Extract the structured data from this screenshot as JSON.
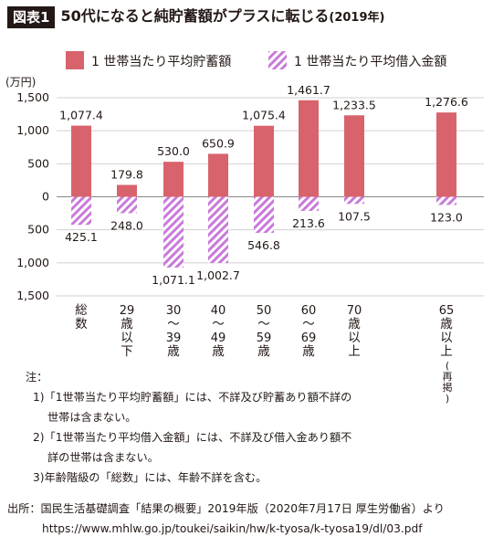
{
  "header": {
    "badge": "図表1",
    "title": "50代になると純貯蓄額がプラスに転じる",
    "year": "(2019年)"
  },
  "legend": {
    "savings": "1 世帯当たり平均貯蓄額",
    "debt": "1 世帯当たり平均借入金額"
  },
  "colors": {
    "savings": "#d8636c",
    "debt": "#c97ad9",
    "text": "#231815"
  },
  "chart_data": {
    "type": "bar",
    "unit": "(万円)",
    "ylim": [
      -1500,
      1500
    ],
    "yticks": [
      "1,500",
      "1,000",
      "500",
      "0",
      "500",
      "1,000",
      "1,500"
    ],
    "categories": [
      "総数",
      "29歳以下",
      "30〜39歳",
      "40〜49歳",
      "50〜59歳",
      "60〜69歳",
      "70歳以上",
      "65歳以上(再掲)"
    ],
    "category_labels": [
      [
        "総",
        "数"
      ],
      [
        "29",
        "歳",
        "以",
        "下"
      ],
      [
        "30",
        "〜",
        "39",
        "歳"
      ],
      [
        "40",
        "〜",
        "49",
        "歳"
      ],
      [
        "50",
        "〜",
        "59",
        "歳"
      ],
      [
        "60",
        "〜",
        "69",
        "歳"
      ],
      [
        "70",
        "歳",
        "以",
        "上"
      ],
      [
        "65",
        "歳",
        "以",
        "上",
        "(再掲)"
      ]
    ],
    "series": [
      {
        "name": "1 世帯当たり平均貯蓄額",
        "values": [
          1077.4,
          179.8,
          530.0,
          650.9,
          1075.4,
          1461.7,
          1233.5,
          1276.6
        ],
        "labels": [
          "1,077.4",
          "179.8",
          "530.0",
          "650.9",
          "1,075.4",
          "1,461.7",
          "1,233.5",
          "1,276.6"
        ]
      },
      {
        "name": "1 世帯当たり平均借入金額",
        "values": [
          425.1,
          248.0,
          1071.1,
          1002.7,
          546.8,
          213.6,
          107.5,
          123.0
        ],
        "labels": [
          "425.1",
          "248.0",
          "1,071.1",
          "1,002.7",
          "546.8",
          "213.6",
          "107.5",
          "123.0"
        ]
      }
    ]
  },
  "notes": {
    "heading": "注：",
    "lines": [
      "1)「1世帯当たり平均貯蓄額」には、不詳及び貯蓄あり額不詳の",
      "世帯は含まない。",
      "2)「1世帯当たり平均借入金額」には、不詳及び借入金あり額不",
      "詳の世帯は含まない。",
      "3)年齢階級の「総数」には、年齢不詳を含む。"
    ]
  },
  "source": {
    "line1": "出所：国民生活基礎調査「結果の概要」2019年版（2020年7月17日 厚生労働省）より",
    "line2": "https://www.mhlw.go.jp/toukei/saikin/hw/k-tyosa/k-tyosa19/dl/03.pdf"
  }
}
